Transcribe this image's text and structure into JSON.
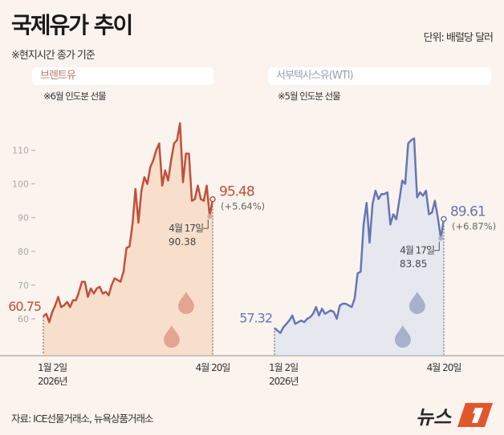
{
  "header": {
    "title": "국제유가 추이",
    "unit": "단위: 배럴당 달러",
    "note": "※현지시간 종가 기준"
  },
  "footer": {
    "source": "자료: ICE선물거래소, 뉴욕상품거래소",
    "logo_text": "뉴스1"
  },
  "colors": {
    "brent": "#c0503a",
    "brent_fill": "#f8dfcb",
    "wti": "#6676b4",
    "wti_fill": "#e6e8f0",
    "background": "#fbf3ee"
  },
  "chart_data": [
    {
      "type": "area",
      "title": "브렌트유",
      "subtitle": "※6월 인도분 선물",
      "x_labels": [
        "1월 2일\n2026년",
        "4월 20일"
      ],
      "x_start_label": "1월 2일",
      "x_start_year": "2026년",
      "x_end_label": "4월 20일",
      "y_ticks": [
        60,
        70,
        80,
        90,
        100,
        110
      ],
      "ylim": [
        49,
        120
      ],
      "grid": false,
      "values": [
        60.75,
        61.5,
        59,
        62,
        64,
        66.5,
        63.5,
        64,
        65,
        63.5,
        65.5,
        65.5,
        68,
        71,
        71,
        66.5,
        69,
        67.5,
        69,
        69.5,
        67.5,
        68,
        67,
        70,
        72,
        71.5,
        71,
        74,
        81,
        81.5,
        88,
        98.5,
        88.5,
        98,
        102,
        100,
        105,
        107,
        110,
        112,
        99.5,
        104,
        101,
        107,
        112,
        113,
        118,
        100.5,
        109,
        109,
        95,
        95.5,
        99.5,
        95.5,
        95,
        99.5,
        90.38,
        95.48
      ],
      "start_label": "60.75",
      "end_label": "95.48",
      "end_change": "(+5.64%)",
      "prev_date": "4월 17일",
      "prev_value": "90.38"
    },
    {
      "type": "area",
      "title": "서부텍사스유(WTI)",
      "subtitle": "※5월 인도분 선물",
      "x_start_label": "1월 2일",
      "x_start_year": "2026년",
      "x_end_label": "4월 20일",
      "ylim": [
        49,
        120
      ],
      "grid": false,
      "values": [
        57.32,
        56.5,
        55.8,
        57.5,
        58.5,
        59.5,
        61,
        58.5,
        59,
        59.5,
        59,
        60,
        60.5,
        61.5,
        63.5,
        61,
        63,
        61.5,
        62,
        62.5,
        62,
        60,
        64,
        64.5,
        64.5,
        64,
        63.5,
        66,
        73.5,
        74,
        88,
        94.4,
        82.6,
        94,
        98,
        95.5,
        97,
        97,
        97.5,
        88,
        91,
        89.5,
        95,
        101,
        100,
        112,
        113,
        113.5,
        96,
        97.5,
        96.5,
        98,
        91,
        91.5,
        95,
        90,
        83.85,
        89.61
      ],
      "start_label": "57.32",
      "end_label": "89.61",
      "end_change": "(+6.87%)",
      "prev_date": "4월 17일",
      "prev_value": "83.85"
    }
  ]
}
